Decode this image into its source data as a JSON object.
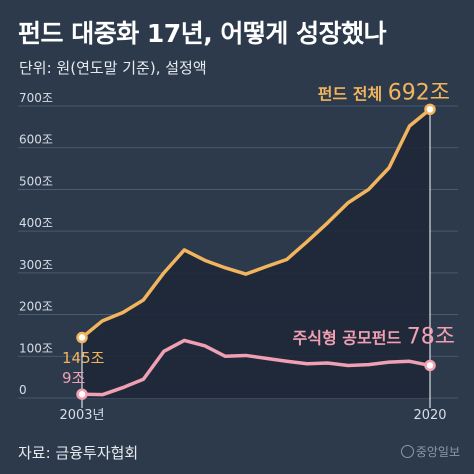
{
  "title": "펀드 대중화 17년, 어떻게 성장했나",
  "subtitle": "단위: 원(연도말 기준), 설정액",
  "source": "자료: 금융투자협회",
  "logo": "중앙일보",
  "colors": {
    "background": "#2c3a4c",
    "total_line": "#f2b55d",
    "public_equity_line": "#f0a0b2",
    "area_fill": "#1e2838",
    "grid": "#506078",
    "axis_text": "#d7dde5"
  },
  "chart_data": {
    "type": "line",
    "x_labels_shown": [
      "2003년",
      "2020"
    ],
    "y_ticks": [
      "0",
      "100조",
      "200조",
      "300조",
      "400조",
      "500조",
      "600조",
      "700조"
    ],
    "ylim": [
      0,
      700
    ],
    "x": [
      2003,
      2004,
      2005,
      2006,
      2007,
      2008,
      2009,
      2010,
      2011,
      2012,
      2013,
      2014,
      2015,
      2016,
      2017,
      2018,
      2019,
      2020
    ],
    "series": [
      {
        "name": "펀드 전체",
        "values": [
          145,
          185,
          205,
          235,
          300,
          355,
          330,
          312,
          297,
          315,
          332,
          375,
          420,
          468,
          500,
          552,
          652,
          692
        ]
      },
      {
        "name": "주식형 공모펀드",
        "values": [
          9,
          8,
          25,
          45,
          112,
          138,
          125,
          100,
          102,
          95,
          88,
          82,
          84,
          78,
          80,
          86,
          88,
          78
        ]
      }
    ],
    "annotations": [
      {
        "text_prefix": "펀드 전체",
        "value_label": "692조"
      },
      {
        "text_prefix": "주식형 공모펀드",
        "value_label": "78조"
      },
      {
        "text": "145조"
      },
      {
        "text": "9조"
      }
    ]
  }
}
